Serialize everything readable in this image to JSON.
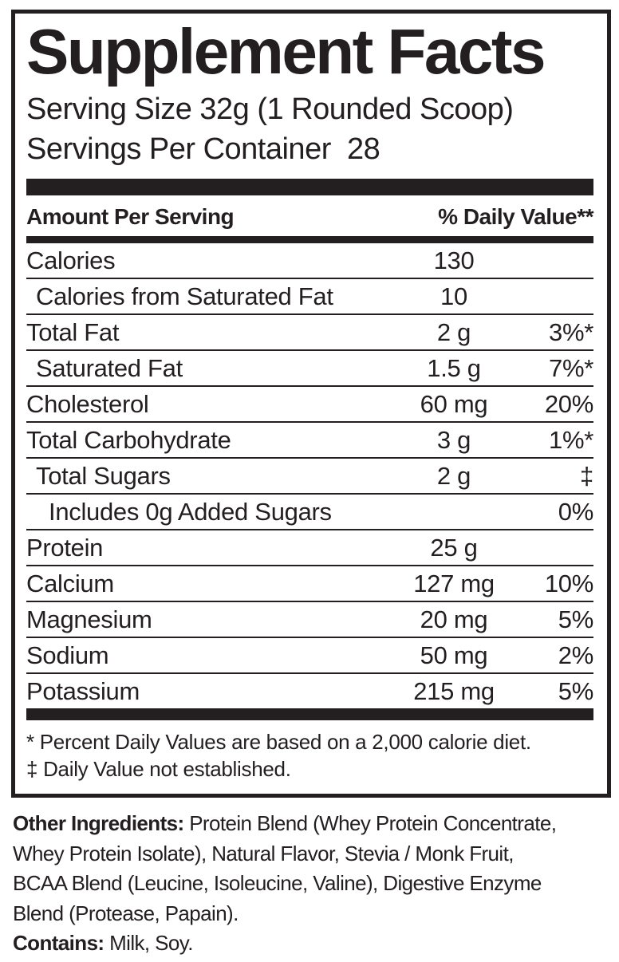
{
  "colors": {
    "ink": "#231f20",
    "background": "#ffffff"
  },
  "panel": {
    "title": "Supplement Facts",
    "serving_size": "Serving Size 32g (1 Rounded Scoop)",
    "servings_per_container": "Servings Per Container  28",
    "header": {
      "left": "Amount Per Serving",
      "right": "% Daily Value**"
    },
    "rows": [
      {
        "label": "Calories",
        "amount": "130",
        "dv": ""
      },
      {
        "label": "Calories from Saturated Fat",
        "amount": "10",
        "dv": ""
      },
      {
        "label": "Total Fat",
        "amount": "2 g",
        "dv": "3%*"
      },
      {
        "label": "Saturated Fat",
        "amount": "1.5 g",
        "dv": "7%*"
      },
      {
        "label": "Cholesterol",
        "amount": "60 mg",
        "dv": "20%"
      },
      {
        "label": "Total Carbohydrate",
        "amount": "3 g",
        "dv": "1%*"
      },
      {
        "label": "Total Sugars",
        "amount": "2 g",
        "dv": "‡"
      },
      {
        "label": "Includes 0g Added Sugars",
        "amount": "",
        "dv": "0%"
      },
      {
        "label": "Protein",
        "amount": "25 g",
        "dv": ""
      },
      {
        "label": "Calcium",
        "amount": "127 mg",
        "dv": "10%"
      },
      {
        "label": "Magnesium",
        "amount": "20 mg",
        "dv": "5%"
      },
      {
        "label": "Sodium",
        "amount": "50 mg",
        "dv": "2%"
      },
      {
        "label": "Potassium",
        "amount": "215 mg",
        "dv": "5%"
      }
    ],
    "footnotes": [
      "* Percent Daily Values are based on a 2,000 calorie diet.",
      "‡ Daily Value not established."
    ]
  },
  "other_ingredients": {
    "label": "Other Ingredients:",
    "lines": [
      "Protein Blend (Whey Protein Concentrate,",
      "Whey Protein Isolate), Natural Flavor, Stevia / Monk Fruit,",
      "BCAA Blend (Leucine, Isoleucine, Valine), Digestive Enzyme",
      "Blend (Protease, Papain)."
    ]
  },
  "contains": {
    "label": "Contains:",
    "text": "Milk, Soy."
  }
}
